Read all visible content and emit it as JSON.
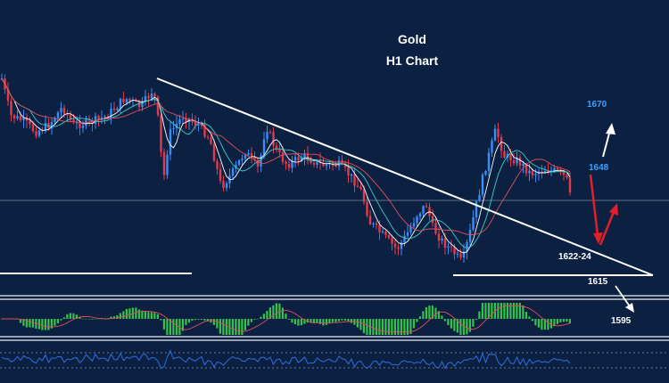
{
  "chart_data": {
    "type": "candlestick",
    "instrument": "Gold",
    "timeframe": "H1 Chart",
    "title_line1": "Gold",
    "title_line2": "H1 Chart",
    "price_range": [
      1605,
      1682
    ],
    "colors": {
      "background": "#0c2142",
      "bull": "#3b8cf5",
      "bear": "#e23b4a",
      "trendline": "#ffffff",
      "ma_fast": "#ffffff",
      "ma_mid": "#36d0c6",
      "ma_slow": "#e0505a",
      "macd_hist": "#35c24a",
      "macd_signal": "#e0505a",
      "rsi": "#2f6fe0",
      "arrow_up": "#ffffff",
      "arrow_red": "#e21f2a"
    },
    "levels": [
      {
        "name": "1670",
        "price": 1670,
        "color": "#3aa0ff"
      },
      {
        "name": "1648",
        "price": 1648,
        "color": "#3aa0ff"
      },
      {
        "name": "1622-24",
        "price": 1623,
        "color": "#ffffff"
      },
      {
        "name": "1615",
        "price": 1615,
        "color": "#ffffff"
      },
      {
        "name": "1595",
        "price": 1595,
        "color": "#ffffff"
      }
    ],
    "horizontal_line_price": 1640,
    "support_line_price": 1612
  }
}
